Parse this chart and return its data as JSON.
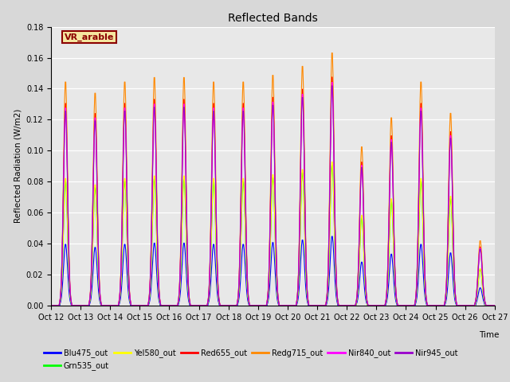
{
  "title": "Reflected Bands",
  "xlabel": "Time",
  "ylabel": "Reflected Radiation (W/m2)",
  "annotation": "VR_arable",
  "ylim": [
    0.0,
    0.18
  ],
  "series_names": [
    "Blu475_out",
    "Grn535_out",
    "Yel580_out",
    "Red655_out",
    "Redg715_out",
    "Nir840_out",
    "Nir945_out"
  ],
  "series_colors": [
    "#0000FF",
    "#00FF00",
    "#FFFF00",
    "#FF0000",
    "#FF8800",
    "#FF00FF",
    "#9900CC"
  ],
  "tick_labels": [
    "Oct 12",
    "Oct 13",
    "Oct 14",
    "Oct 15",
    "Oct 16",
    "Oct 17",
    "Oct 18",
    "Oct 19",
    "Oct 20",
    "Oct 21",
    "Oct 22",
    "Oct 23",
    "Oct 24",
    "Oct 25",
    "Oct 26",
    "Oct 27"
  ],
  "background_color": "#d8d8d8",
  "plot_bg_color": "#e8e8e8",
  "n_days": 15,
  "pts_per_day": 48,
  "day_peak_multipliers": [
    1.0,
    0.95,
    1.0,
    1.02,
    1.02,
    1.0,
    1.0,
    1.03,
    1.07,
    1.13,
    0.71,
    0.84,
    1.0,
    0.86,
    0.29
  ],
  "peak_bases": {
    "Blu475_out": 0.04,
    "Grn535_out": 0.081,
    "Yel580_out": 0.083,
    "Red655_out": 0.132,
    "Redg715_out": 0.146,
    "Nir840_out": 0.129,
    "Nir945_out": 0.127
  }
}
